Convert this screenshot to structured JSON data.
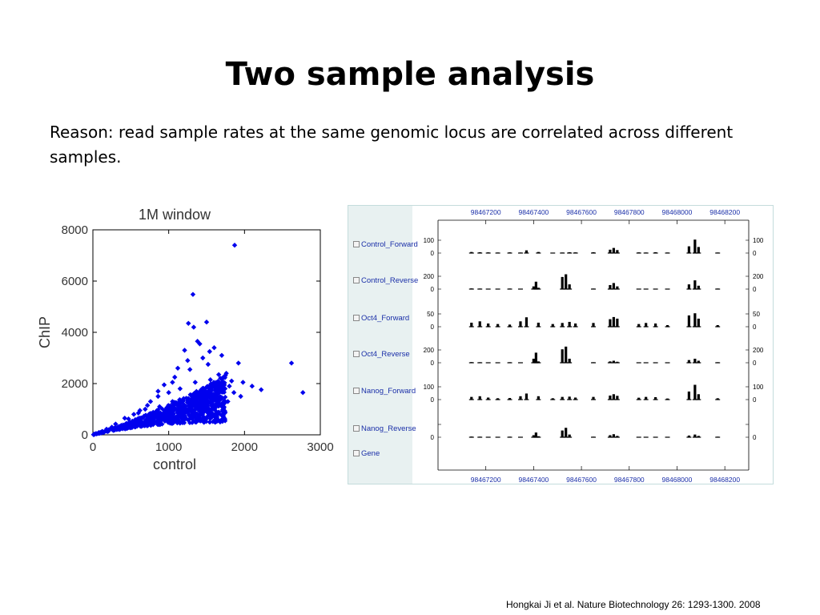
{
  "slide": {
    "title": "Two sample analysis",
    "reason": "Reason: read sample rates at the same genomic locus are correlated across different samples.",
    "citation": "Hongkai Ji et al. Nature Biotechnology 26: 1293-1300. 2008"
  },
  "colors": {
    "scatter_points": "#0000ee",
    "track_bars": "#000000",
    "browser_panel": "#e8f1f1",
    "track_label": "#1a2fa8"
  },
  "chart_data": [
    {
      "type": "scatter",
      "title": "1M window",
      "xlabel": "control",
      "ylabel": "ChIP",
      "xlim": [
        0,
        3000
      ],
      "ylim": [
        0,
        8000
      ],
      "xticks": [
        0,
        1000,
        2000,
        3000
      ],
      "yticks": [
        0,
        2000,
        4000,
        6000,
        8000
      ],
      "grid": false,
      "trend": "ChIP ≈ 0.8 × control, spread increasing with control",
      "points": [
        [
          1870,
          7400
        ],
        [
          1320,
          5480
        ],
        [
          1260,
          4350
        ],
        [
          1500,
          4400
        ],
        [
          1330,
          4200
        ],
        [
          1540,
          3250
        ],
        [
          1600,
          3400
        ],
        [
          1700,
          3100
        ],
        [
          1450,
          3000
        ],
        [
          1920,
          2800
        ],
        [
          2620,
          2800
        ],
        [
          2770,
          1650
        ],
        [
          2220,
          1760
        ],
        [
          2100,
          1900
        ],
        [
          1830,
          2100
        ],
        [
          1950,
          1500
        ],
        [
          1760,
          2400
        ],
        [
          1380,
          3650
        ],
        [
          1250,
          2900
        ],
        [
          1080,
          2250
        ],
        [
          940,
          1950
        ],
        [
          860,
          1700
        ],
        [
          1120,
          2600
        ],
        [
          1660,
          2350
        ],
        [
          1210,
          3300
        ],
        [
          1410,
          3550
        ],
        [
          1980,
          2050
        ],
        [
          1780,
          1300
        ],
        [
          1860,
          1650
        ],
        [
          690,
          1000
        ],
        [
          540,
          800
        ],
        [
          420,
          650
        ],
        [
          300,
          420
        ],
        [
          250,
          300
        ],
        [
          180,
          220
        ],
        [
          120,
          130
        ],
        [
          80,
          90
        ],
        [
          40,
          50
        ],
        [
          20,
          30
        ],
        [
          10,
          10
        ],
        [
          620,
          950
        ],
        [
          760,
          1300
        ],
        [
          1000,
          1650
        ],
        [
          1150,
          1800
        ],
        [
          1350,
          2050
        ],
        [
          1550,
          2150
        ],
        [
          1710,
          1950
        ],
        [
          880,
          1100
        ],
        [
          1050,
          1300
        ],
        [
          1250,
          1400
        ],
        [
          1450,
          1600
        ],
        [
          1620,
          1700
        ],
        [
          1800,
          1900
        ],
        [
          1520,
          2750
        ],
        [
          1280,
          2550
        ],
        [
          1050,
          2050
        ],
        [
          860,
          1500
        ],
        [
          720,
          1150
        ],
        [
          600,
          850
        ],
        [
          470,
          620
        ]
      ]
    },
    {
      "type": "bar",
      "xlabel": "",
      "ylabel": "",
      "x_ticks": [
        "98467200",
        "98467400",
        "98467600",
        "98467800",
        "98468000",
        "98468200"
      ],
      "tracks": [
        {
          "name": "Control_Forward",
          "left_ticks": [
            "100",
            "0"
          ],
          "right_ticks": [
            "100",
            "0"
          ],
          "max": 100,
          "bars": [
            [
              98467140,
              8
            ],
            [
              98467175,
              6
            ],
            [
              98467210,
              5
            ],
            [
              98467250,
              4
            ],
            [
              98467300,
              5
            ],
            [
              98467345,
              4
            ],
            [
              98467370,
              20
            ],
            [
              98467420,
              8
            ],
            [
              98467480,
              3
            ],
            [
              98467520,
              4
            ],
            [
              98467550,
              6
            ],
            [
              98467575,
              5
            ],
            [
              98467650,
              6
            ],
            [
              98467720,
              25
            ],
            [
              98467735,
              38
            ],
            [
              98467750,
              22
            ],
            [
              98467840,
              5
            ],
            [
              98467870,
              4
            ],
            [
              98467910,
              6
            ],
            [
              98467960,
              4
            ],
            [
              98468050,
              50
            ],
            [
              98468075,
              100
            ],
            [
              98468090,
              45
            ],
            [
              98468170,
              4
            ]
          ]
        },
        {
          "name": "Control_Reverse",
          "left_ticks": [
            "200",
            "0"
          ],
          "right_ticks": [
            "200",
            "0"
          ],
          "max": 200,
          "bars": [
            [
              98467140,
              10
            ],
            [
              98467175,
              8
            ],
            [
              98467210,
              6
            ],
            [
              98467250,
              5
            ],
            [
              98467300,
              8
            ],
            [
              98467345,
              5
            ],
            [
              98467400,
              40
            ],
            [
              98467410,
              110
            ],
            [
              98467420,
              20
            ],
            [
              98467520,
              180
            ],
            [
              98467535,
              220
            ],
            [
              98467550,
              70
            ],
            [
              98467650,
              8
            ],
            [
              98467720,
              60
            ],
            [
              98467735,
              90
            ],
            [
              98467750,
              40
            ],
            [
              98467840,
              6
            ],
            [
              98467870,
              5
            ],
            [
              98467910,
              6
            ],
            [
              98467960,
              4
            ],
            [
              98468050,
              70
            ],
            [
              98468075,
              130
            ],
            [
              98468090,
              50
            ],
            [
              98468170,
              8
            ]
          ]
        },
        {
          "name": "Oct4_Forward",
          "left_ticks": [
            "50",
            "0"
          ],
          "right_ticks": [
            "50",
            "0"
          ],
          "max": 50,
          "bars": [
            [
              98467140,
              15
            ],
            [
              98467175,
              20
            ],
            [
              98467210,
              12
            ],
            [
              98467250,
              10
            ],
            [
              98467300,
              8
            ],
            [
              98467345,
              20
            ],
            [
              98467370,
              35
            ],
            [
              98467420,
              15
            ],
            [
              98467480,
              10
            ],
            [
              98467520,
              14
            ],
            [
              98467550,
              18
            ],
            [
              98467575,
              12
            ],
            [
              98467650,
              14
            ],
            [
              98467720,
              28
            ],
            [
              98467735,
              36
            ],
            [
              98467750,
              30
            ],
            [
              98467840,
              10
            ],
            [
              98467870,
              14
            ],
            [
              98467910,
              12
            ],
            [
              98467960,
              6
            ],
            [
              98468050,
              42
            ],
            [
              98468075,
              50
            ],
            [
              98468090,
              30
            ],
            [
              98468170,
              6
            ]
          ]
        },
        {
          "name": "Oct4_Reverse",
          "left_ticks": [
            "200",
            "0"
          ],
          "right_ticks": [
            "200",
            "0"
          ],
          "max": 200,
          "bars": [
            [
              98467140,
              10
            ],
            [
              98467175,
              8
            ],
            [
              98467210,
              6
            ],
            [
              98467250,
              5
            ],
            [
              98467300,
              8
            ],
            [
              98467345,
              5
            ],
            [
              98467400,
              60
            ],
            [
              98467410,
              150
            ],
            [
              98467420,
              20
            ],
            [
              98467520,
              200
            ],
            [
              98467535,
              240
            ],
            [
              98467550,
              60
            ],
            [
              98467650,
              8
            ],
            [
              98467720,
              20
            ],
            [
              98467735,
              30
            ],
            [
              98467750,
              15
            ],
            [
              98467840,
              6
            ],
            [
              98467870,
              5
            ],
            [
              98467910,
              6
            ],
            [
              98467960,
              4
            ],
            [
              98468050,
              40
            ],
            [
              98468075,
              60
            ],
            [
              98468090,
              30
            ],
            [
              98468170,
              8
            ]
          ]
        },
        {
          "name": "Nanog_Forward",
          "left_ticks": [
            "100",
            "0"
          ],
          "right_ticks": [
            "100",
            "0"
          ],
          "max": 100,
          "bars": [
            [
              98467140,
              20
            ],
            [
              98467175,
              25
            ],
            [
              98467210,
              15
            ],
            [
              98467250,
              10
            ],
            [
              98467300,
              12
            ],
            [
              98467345,
              25
            ],
            [
              98467370,
              45
            ],
            [
              98467420,
              25
            ],
            [
              98467480,
              10
            ],
            [
              98467520,
              20
            ],
            [
              98467550,
              22
            ],
            [
              98467575,
              15
            ],
            [
              98467650,
              20
            ],
            [
              98467720,
              30
            ],
            [
              98467735,
              40
            ],
            [
              98467750,
              28
            ],
            [
              98467840,
              14
            ],
            [
              98467870,
              20
            ],
            [
              98467910,
              18
            ],
            [
              98467960,
              8
            ],
            [
              98468050,
              60
            ],
            [
              98468075,
              110
            ],
            [
              98468090,
              40
            ],
            [
              98468170,
              10
            ]
          ]
        },
        {
          "name": "Nanog_Reverse",
          "left_ticks": [
            "",
            "0"
          ],
          "right_ticks": [
            "",
            "0"
          ],
          "max": 200,
          "bars": [
            [
              98467140,
              10
            ],
            [
              98467175,
              8
            ],
            [
              98467210,
              6
            ],
            [
              98467250,
              5
            ],
            [
              98467300,
              8
            ],
            [
              98467345,
              5
            ],
            [
              98467400,
              30
            ],
            [
              98467410,
              70
            ],
            [
              98467420,
              15
            ],
            [
              98467520,
              100
            ],
            [
              98467535,
              140
            ],
            [
              98467550,
              40
            ],
            [
              98467650,
              8
            ],
            [
              98467720,
              30
            ],
            [
              98467735,
              45
            ],
            [
              98467750,
              20
            ],
            [
              98467840,
              6
            ],
            [
              98467870,
              5
            ],
            [
              98467910,
              6
            ],
            [
              98467960,
              4
            ],
            [
              98468050,
              25
            ],
            [
              98468075,
              40
            ],
            [
              98468090,
              20
            ],
            [
              98468170,
              8
            ]
          ]
        },
        {
          "name": "Gene",
          "left_ticks": [],
          "right_ticks": [],
          "max": 0,
          "bars": []
        }
      ]
    }
  ]
}
